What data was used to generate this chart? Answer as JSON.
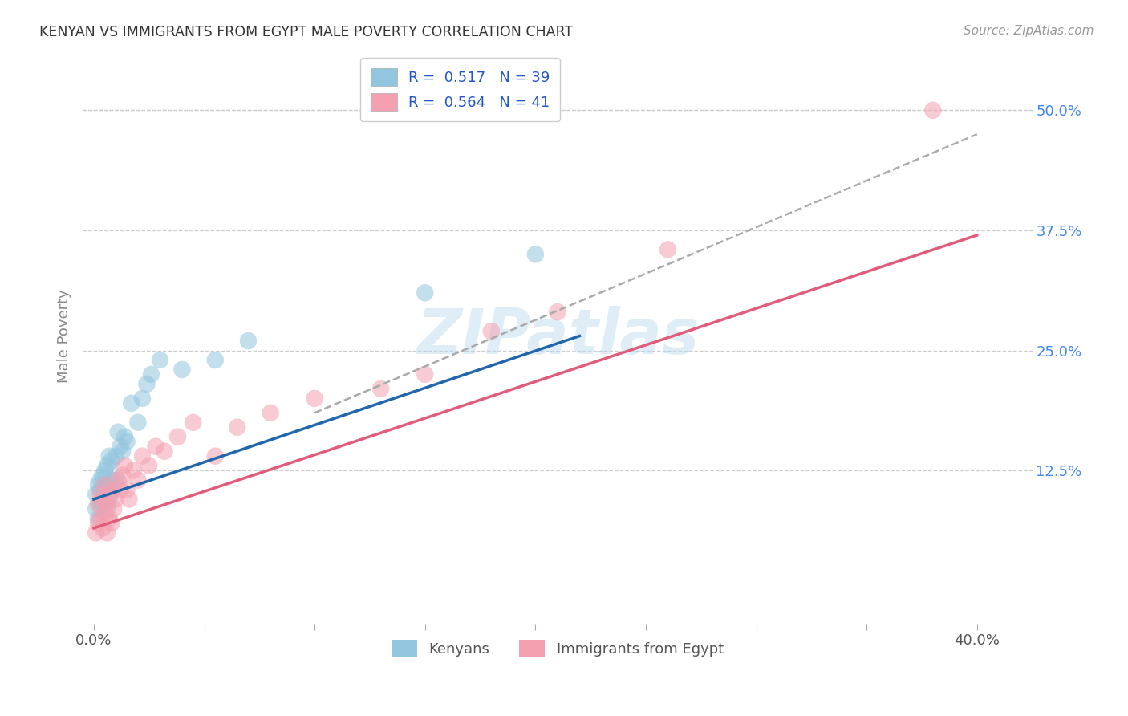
{
  "title": "KENYAN VS IMMIGRANTS FROM EGYPT MALE POVERTY CORRELATION CHART",
  "source": "Source: ZipAtlas.com",
  "ylabel": "Male Poverty",
  "x_ticks": [
    0.0,
    0.05,
    0.1,
    0.15,
    0.2,
    0.25,
    0.3,
    0.35,
    0.4
  ],
  "y_ticks_right": [
    0.125,
    0.25,
    0.375,
    0.5
  ],
  "y_tick_labels_right": [
    "12.5%",
    "25.0%",
    "37.5%",
    "50.0%"
  ],
  "xlim": [
    -0.005,
    0.425
  ],
  "ylim": [
    -0.035,
    0.565
  ],
  "legend_label1": "Kenyans",
  "legend_label2": "Immigrants from Egypt",
  "R_kenyan": 0.517,
  "N_kenyan": 39,
  "R_egypt": 0.564,
  "N_egypt": 41,
  "color_kenyan": "#92c5de",
  "color_egypt": "#f4a0b0",
  "color_kenyan_line": "#2166ac",
  "color_egypt_line": "#e05c7a",
  "color_dashed_line": "#aaaaaa",
  "watermark": "ZIPatlas",
  "background_color": "#ffffff",
  "kenyan_x": [
    0.001,
    0.001,
    0.002,
    0.002,
    0.003,
    0.003,
    0.003,
    0.004,
    0.004,
    0.005,
    0.005,
    0.005,
    0.006,
    0.006,
    0.006,
    0.007,
    0.007,
    0.007,
    0.008,
    0.008,
    0.009,
    0.01,
    0.01,
    0.011,
    0.012,
    0.013,
    0.014,
    0.015,
    0.017,
    0.02,
    0.022,
    0.024,
    0.026,
    0.03,
    0.04,
    0.055,
    0.07,
    0.15,
    0.2
  ],
  "kenyan_y": [
    0.085,
    0.1,
    0.075,
    0.11,
    0.09,
    0.105,
    0.115,
    0.09,
    0.12,
    0.095,
    0.105,
    0.125,
    0.085,
    0.11,
    0.13,
    0.095,
    0.11,
    0.14,
    0.115,
    0.135,
    0.105,
    0.115,
    0.14,
    0.165,
    0.15,
    0.145,
    0.16,
    0.155,
    0.195,
    0.175,
    0.2,
    0.215,
    0.225,
    0.24,
    0.23,
    0.24,
    0.26,
    0.31,
    0.35
  ],
  "egypt_x": [
    0.001,
    0.002,
    0.002,
    0.003,
    0.003,
    0.004,
    0.004,
    0.005,
    0.005,
    0.006,
    0.006,
    0.007,
    0.007,
    0.008,
    0.008,
    0.009,
    0.01,
    0.011,
    0.012,
    0.013,
    0.014,
    0.015,
    0.016,
    0.018,
    0.02,
    0.022,
    0.025,
    0.028,
    0.032,
    0.038,
    0.045,
    0.055,
    0.065,
    0.08,
    0.1,
    0.13,
    0.15,
    0.18,
    0.21,
    0.26,
    0.38
  ],
  "egypt_y": [
    0.06,
    0.07,
    0.09,
    0.075,
    0.1,
    0.065,
    0.095,
    0.08,
    0.11,
    0.06,
    0.09,
    0.075,
    0.1,
    0.07,
    0.105,
    0.085,
    0.095,
    0.115,
    0.105,
    0.12,
    0.13,
    0.105,
    0.095,
    0.125,
    0.115,
    0.14,
    0.13,
    0.15,
    0.145,
    0.16,
    0.175,
    0.14,
    0.17,
    0.185,
    0.2,
    0.21,
    0.225,
    0.27,
    0.29,
    0.355,
    0.5
  ],
  "kenyan_line_x": [
    0.0,
    0.22
  ],
  "kenyan_line_y": [
    0.095,
    0.265
  ],
  "egypt_line_x": [
    0.0,
    0.4
  ],
  "egypt_line_y": [
    0.065,
    0.37
  ],
  "dashed_line_x": [
    0.1,
    0.4
  ],
  "dashed_line_y": [
    0.185,
    0.475
  ]
}
